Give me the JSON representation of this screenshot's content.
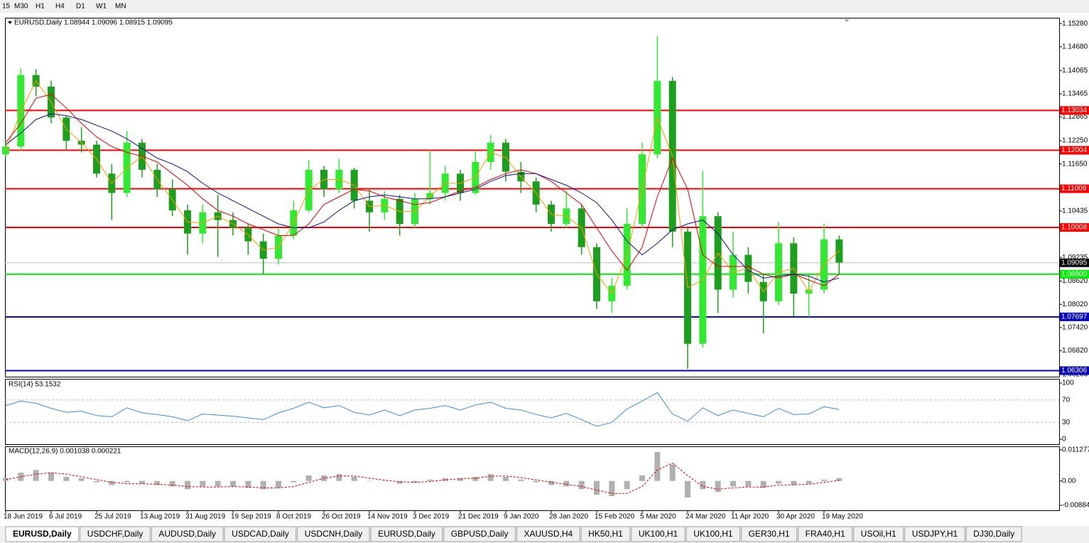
{
  "toolbar": [
    "15",
    "M30",
    "H1",
    "H4",
    "D1",
    "W1",
    "MN"
  ],
  "chart_data": {
    "type": "candlestick",
    "title": "EURUSD,Daily  1.08944 1.09096 1.08915 1.09095",
    "categories": [
      "18 Jun 2019",
      null,
      null,
      "6 Jul 2019",
      null,
      null,
      "25 Jul 2019",
      null,
      null,
      "13 Aug 2019",
      null,
      null,
      "31 Aug 2019",
      null,
      null,
      "19 Sep 2019",
      null,
      null,
      "8 Oct 2019",
      null,
      null,
      "26 Oct 2019",
      null,
      null,
      "14 Nov 2019",
      null,
      null,
      "3 Dec 2019",
      null,
      null,
      "21 Dec 2019",
      null,
      null,
      "9 Jan 2020",
      null,
      null,
      "28 Jan 2020",
      null,
      null,
      "15 Feb 2020",
      null,
      null,
      "5 Mar 2020",
      null,
      null,
      "24 Mar 2020",
      null,
      null,
      "11 Apr 2020",
      null,
      null,
      "30 Apr 2020",
      null,
      null,
      "19 May 2020",
      null
    ],
    "open": [
      1.119,
      1.121,
      1.1395,
      1.1365,
      1.1285,
      1.1225,
      1.1215,
      1.114,
      1.109,
      1.122,
      1.115,
      1.11,
      1.1045,
      1.0985,
      1.104,
      1.102,
      1.1,
      1.0965,
      1.092,
      1.098,
      1.1045,
      1.115,
      1.11,
      1.115,
      1.107,
      1.104,
      1.1075,
      1.101,
      1.1075,
      1.109,
      1.114,
      1.109,
      1.117,
      1.122,
      1.1145,
      1.112,
      1.106,
      1.101,
      1.105,
      1.095,
      1.081,
      1.085,
      1.101,
      1.119,
      1.138,
      1.099,
      1.07,
      1.103,
      1.084,
      1.093,
      1.086,
      1.081,
      1.096,
      1.083,
      1.084,
      1.097
    ],
    "high": [
      1.1225,
      1.1412,
      1.141,
      1.138,
      1.129,
      1.126,
      1.1225,
      1.1165,
      1.125,
      1.123,
      1.1165,
      1.1125,
      1.106,
      1.106,
      1.1085,
      1.104,
      1.101,
      1.0985,
      1.1,
      1.107,
      1.1175,
      1.116,
      1.1178,
      1.1155,
      1.11,
      1.1095,
      1.1085,
      1.109,
      1.12,
      1.116,
      1.115,
      1.12,
      1.124,
      1.123,
      1.117,
      1.113,
      1.107,
      1.1095,
      1.106,
      1.096,
      1.087,
      1.105,
      1.122,
      1.1495,
      1.139,
      1.1,
      1.1147,
      1.104,
      1.099,
      1.095,
      1.088,
      1.1015,
      1.0975,
      1.088,
      1.101,
      1.098
    ],
    "low": [
      1.118,
      1.12,
      1.134,
      1.127,
      1.12,
      1.1195,
      1.113,
      1.102,
      1.108,
      1.113,
      1.108,
      1.103,
      1.093,
      1.096,
      1.0925,
      1.098,
      1.093,
      1.088,
      1.0905,
      1.097,
      1.104,
      1.108,
      1.109,
      1.105,
      1.099,
      1.102,
      1.098,
      1.1,
      1.106,
      1.107,
      1.107,
      1.1085,
      1.115,
      1.112,
      1.109,
      1.104,
      1.099,
      1.1,
      1.093,
      1.079,
      1.078,
      1.084,
      1.1,
      1.118,
      1.095,
      1.0635,
      1.069,
      1.078,
      1.082,
      1.083,
      1.0727,
      1.08,
      1.077,
      1.077,
      1.083,
      1.088
    ],
    "close": [
      1.121,
      1.1395,
      1.1365,
      1.1285,
      1.1225,
      1.1215,
      1.114,
      1.109,
      1.122,
      1.115,
      1.11,
      1.1045,
      1.0985,
      1.104,
      1.102,
      1.1,
      1.0965,
      1.092,
      1.098,
      1.1045,
      1.115,
      1.11,
      1.115,
      1.107,
      1.104,
      1.1075,
      1.101,
      1.1075,
      1.109,
      1.114,
      1.109,
      1.117,
      1.122,
      1.1145,
      1.112,
      1.106,
      1.101,
      1.105,
      1.095,
      1.081,
      1.085,
      1.101,
      1.119,
      1.138,
      1.099,
      1.07,
      1.103,
      1.084,
      1.093,
      1.086,
      1.081,
      1.096,
      1.083,
      1.084,
      1.097,
      1.091
    ],
    "bull_color": "#32e832",
    "bear_color": "#1e9e1e",
    "overlays": [
      {
        "color": "#ff9900",
        "values": [
          1.12,
          1.13,
          1.138,
          1.1325,
          1.1255,
          1.122,
          1.1178,
          1.1115,
          1.1155,
          1.1185,
          1.1125,
          1.1072,
          1.1015,
          1.1012,
          1.103,
          1.101,
          1.0982,
          1.0942,
          1.095,
          1.1012,
          1.1098,
          1.1125,
          1.1125,
          1.111,
          1.1055,
          1.1058,
          1.1042,
          1.1042,
          1.1082,
          1.1115,
          1.1115,
          1.113,
          1.1195,
          1.1182,
          1.1132,
          1.109,
          1.1035,
          1.103,
          1.1,
          1.088,
          1.083,
          1.093,
          1.11,
          1.1285,
          1.1185,
          1.0845,
          1.0865,
          1.0935,
          1.0885,
          1.0895,
          1.0835,
          1.0885,
          1.0895,
          1.0835,
          1.0905,
          1.094
        ]
      },
      {
        "color": "#e00000",
        "values": [
          1.122,
          1.127,
          1.1335,
          1.1345,
          1.131,
          1.127,
          1.1235,
          1.121,
          1.1195,
          1.1185,
          1.117,
          1.114,
          1.111,
          1.1075,
          1.1045,
          1.103,
          1.101,
          1.0995,
          1.098,
          1.098,
          1.101,
          1.106,
          1.108,
          1.11,
          1.1095,
          1.108,
          1.107,
          1.106,
          1.1065,
          1.108,
          1.1095,
          1.1105,
          1.1125,
          1.114,
          1.115,
          1.114,
          1.112,
          1.109,
          1.106,
          1.1,
          1.094,
          1.089,
          1.095,
          1.108,
          1.118,
          1.11,
          1.093,
          1.09,
          1.09,
          1.09,
          1.088,
          1.087,
          1.088,
          1.0865,
          1.085,
          1.088
        ]
      },
      {
        "color": "#10108c",
        "values": [
          1.1215,
          1.1245,
          1.128,
          1.1295,
          1.129,
          1.128,
          1.1265,
          1.125,
          1.123,
          1.1205,
          1.118,
          1.1165,
          1.1145,
          1.1115,
          1.109,
          1.107,
          1.105,
          1.103,
          1.101,
          1.1,
          1.1,
          1.1015,
          1.1045,
          1.107,
          1.108,
          1.1085,
          1.108,
          1.1075,
          1.1075,
          1.108,
          1.109,
          1.11,
          1.112,
          1.1135,
          1.114,
          1.114,
          1.1125,
          1.111,
          1.109,
          1.1065,
          1.102,
          1.0965,
          1.093,
          1.096,
          1.0995,
          1.101,
          1.102,
          1.0985,
          1.093,
          1.089,
          1.087,
          1.0875,
          1.088,
          1.0875,
          1.086,
          1.087
        ]
      }
    ],
    "ylim": [
      1.0615,
      1.1543
    ],
    "yticks": [
      {
        "value": 1.1528,
        "label": "1.15280"
      },
      {
        "value": 1.1468,
        "label": "1.14680"
      },
      1.14065,
      1.13465,
      1.12865,
      {
        "value": 1.1225,
        "label": "1.12250"
      },
      {
        "value": 1.1165,
        "label": "1.11650"
      },
      1.10435,
      1.09235,
      {
        "value": 1.0862,
        "label": "1.08620"
      },
      {
        "value": 1.0802,
        "label": "1.08020"
      },
      {
        "value": 1.0742,
        "label": "1.07420"
      },
      {
        "value": 1.0682,
        "label": "1.06820"
      },
      1.06206
    ],
    "levels": [
      {
        "value": 1.13034,
        "color": "#ff0000"
      },
      {
        "value": 1.12004,
        "color": "#ff0000"
      },
      {
        "value": 1.11009,
        "color": "#ff0000"
      },
      {
        "value": 1.10008,
        "color": "#ff0000"
      },
      {
        "value": 1.088,
        "label": "1.08800",
        "color": "#00ee00"
      },
      {
        "value": 1.07697,
        "color": "#0000bb"
      },
      {
        "value": 1.06306,
        "color": "#0000bb"
      }
    ],
    "current_price": 1.09095,
    "rsi": {
      "title": "RSI(14) 53.1532",
      "color": "#3a8fd8",
      "values": [
        60,
        68,
        64,
        55,
        48,
        50,
        42,
        40,
        56,
        47,
        44,
        40,
        33,
        45,
        43,
        41,
        38,
        35,
        47,
        55,
        66,
        56,
        60,
        48,
        43,
        52,
        42,
        52,
        55,
        60,
        52,
        61,
        66,
        55,
        52,
        44,
        38,
        46,
        35,
        23,
        30,
        54,
        68,
        83,
        45,
        32,
        56,
        42,
        52,
        46,
        40,
        55,
        44,
        45,
        58,
        53
      ],
      "ylim": [
        0,
        100
      ],
      "yticks": [
        0,
        30,
        70,
        100
      ]
    },
    "macd": {
      "title": "MACD(12,26,9) 0.001038 0.000221",
      "hist_color": "#b0b0b0",
      "signal_color": "#e00000",
      "histogram": [
        0.001,
        0.003,
        0.004,
        0.003,
        0.0015,
        0.001,
        -0.0005,
        -0.0015,
        -0.0005,
        -0.001,
        -0.0015,
        -0.002,
        -0.003,
        -0.002,
        -0.002,
        -0.002,
        -0.0025,
        -0.003,
        -0.0025,
        -0.0005,
        0.002,
        0.002,
        0.0025,
        0.0015,
        0,
        0,
        -0.001,
        -0.0005,
        0.0005,
        0.001,
        0.001,
        0.0015,
        0.0025,
        0.0015,
        0.0005,
        -0.0005,
        -0.0015,
        -0.002,
        -0.003,
        -0.005,
        -0.0055,
        -0.003,
        0.002,
        0.0105,
        0.006,
        -0.006,
        -0.003,
        -0.004,
        -0.002,
        -0.002,
        -0.0025,
        -0.001,
        -0.0015,
        -0.001,
        0.0005,
        0.001
      ],
      "signal": [
        0.0005,
        0.0015,
        0.0025,
        0.003,
        0.0025,
        0.0015,
        0.0005,
        -0.0005,
        -0.001,
        -0.001,
        -0.0012,
        -0.0015,
        -0.002,
        -0.0022,
        -0.0022,
        -0.002,
        -0.0022,
        -0.0025,
        -0.0025,
        -0.002,
        -0.0005,
        0.001,
        0.0018,
        0.0018,
        0.001,
        0.0003,
        -0.0003,
        -0.0005,
        -0.0002,
        0.0004,
        0.0008,
        0.001,
        0.0017,
        0.0018,
        0.0012,
        0.0004,
        -0.0005,
        -0.0012,
        -0.002,
        -0.0033,
        -0.0045,
        -0.0045,
        -0.002,
        0.004,
        0.0065,
        0.002,
        -0.002,
        -0.003,
        -0.0025,
        -0.0022,
        -0.0022,
        -0.0015,
        -0.0014,
        -0.0012,
        -0.0005,
        0.0002
      ],
      "ylim": [
        -0.008845,
        0.011277
      ],
      "yticks": [
        0.011277,
        {
          "value": 0,
          "label": "0.00"
        },
        -0.008845
      ]
    }
  },
  "tabs": [
    "EURUSD,Daily",
    "USDCHF,Daily",
    "AUDUSD,Daily",
    "USDCAD,Daily",
    "USDCNH,Daily",
    "EURUSD,Daily",
    "GBPUSD,Daily",
    "XAUUSD,H4",
    "HK50,H1",
    "UK100,H1",
    "UK100,H1",
    "GER30,H1",
    "FRA40,H1",
    "USOil,H1",
    "USDJPY,H1",
    "DJ30,Daily"
  ],
  "active_tab": 0
}
